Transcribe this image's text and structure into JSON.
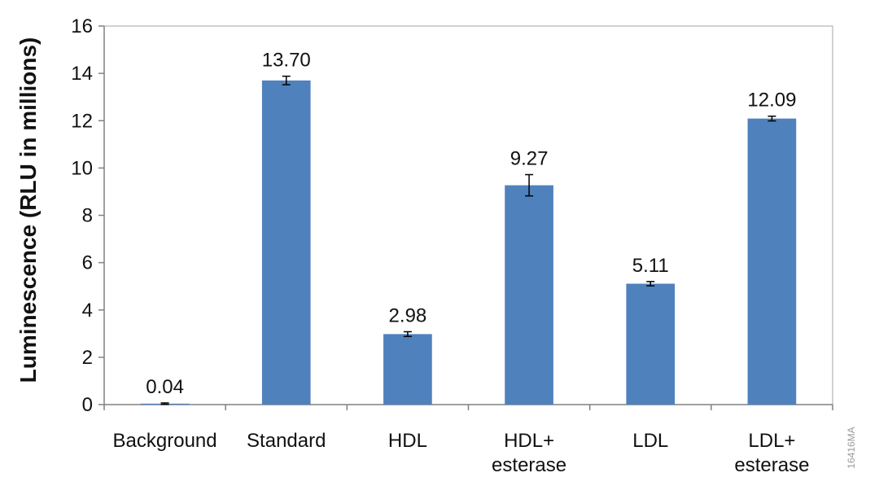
{
  "figure_id": "16416MA",
  "chart_data": {
    "type": "bar",
    "ylabel": "Luminescence (RLU in millions)",
    "xlabel": "",
    "title": "",
    "ylim": [
      0,
      16
    ],
    "yticks": [
      0,
      2,
      4,
      6,
      8,
      10,
      12,
      14,
      16
    ],
    "grid": false,
    "legend": "none",
    "bar_color": "#4f81bd",
    "categories": [
      [
        "Background"
      ],
      [
        "Standard"
      ],
      [
        "HDL"
      ],
      [
        "HDL+",
        "esterase"
      ],
      [
        "LDL"
      ],
      [
        "LDL+",
        "esterase"
      ]
    ],
    "values": [
      0.04,
      13.7,
      2.98,
      9.27,
      5.11,
      12.09
    ],
    "data_labels": [
      "0.04",
      "13.70",
      "2.98",
      "9.27",
      "5.11",
      "12.09"
    ],
    "error": [
      0.03,
      0.18,
      0.1,
      0.45,
      0.09,
      0.1
    ]
  }
}
